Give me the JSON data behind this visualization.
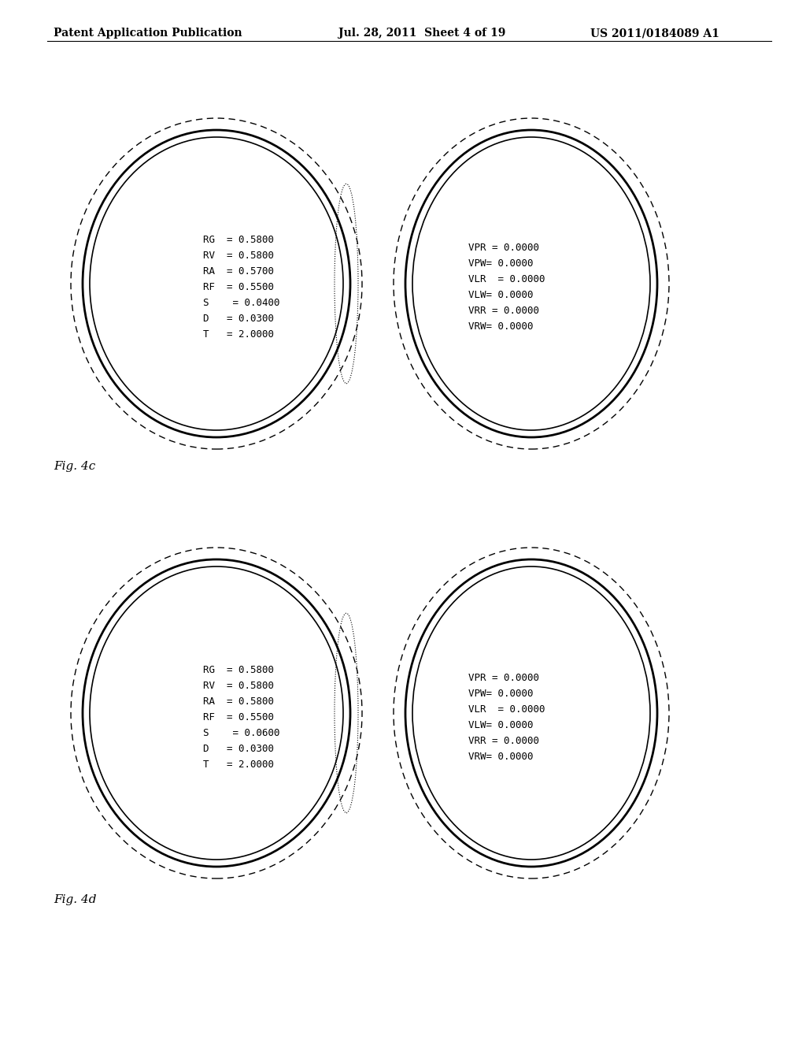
{
  "header_left": "Patent Application Publication",
  "header_mid": "Jul. 28, 2011  Sheet 4 of 19",
  "header_right": "US 2011/0184089 A1",
  "fig4c_label": "Fig. 4c",
  "fig4d_label": "Fig. 4d",
  "fig4c_left_text": [
    "RG  = 0.5800",
    "RV  = 0.5800",
    "RA  = 0.5700",
    "RF  = 0.5500",
    "S    = 0.0400",
    "D   = 0.0300",
    "T   = 2.0000"
  ],
  "fig4c_right_text": [
    "VPR = 0.0000",
    "VPW= 0.0000",
    "VLR  = 0.0000",
    "VLW= 0.0000",
    "VRR = 0.0000",
    "VRW= 0.0000"
  ],
  "fig4d_left_text": [
    "RG  = 0.5800",
    "RV  = 0.5800",
    "RA  = 0.5800",
    "RF  = 0.5500",
    "S    = 0.0600",
    "D   = 0.0300",
    "T   = 2.0000"
  ],
  "fig4d_right_text": [
    "VPR = 0.0000",
    "VPW= 0.0000",
    "VLR  = 0.0000",
    "VLW= 0.0000",
    "VRR = 0.0000",
    "VRW= 0.0000"
  ],
  "background_color": "#ffffff",
  "line_color": "#000000",
  "header_fontsize": 10,
  "label_fontsize": 11,
  "text_fontsize": 9
}
